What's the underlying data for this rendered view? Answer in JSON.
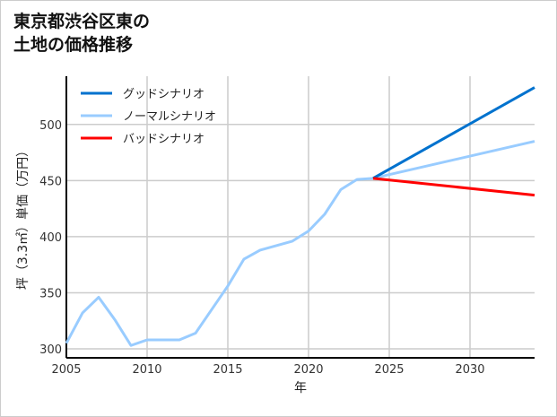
{
  "chart_data": {
    "type": "line",
    "title_lines": [
      "東京都渋谷区東の",
      "土地の価格推移"
    ],
    "xlabel": "年",
    "ylabel": "坪（3.3㎡）単価（万円）",
    "xlim": [
      2005,
      2034
    ],
    "ylim": [
      292,
      543
    ],
    "xticks": [
      2005,
      2010,
      2015,
      2020,
      2025,
      2030
    ],
    "yticks": [
      300,
      350,
      400,
      450,
      500
    ],
    "grid": true,
    "legend_position": "top-left",
    "series": [
      {
        "name": "グッドシナリオ",
        "color": "#0072CE",
        "x": [
          2024,
          2034
        ],
        "y": [
          452,
          533
        ]
      },
      {
        "name": "ノーマルシナリオ",
        "color": "#99CCFF",
        "x": [
          2005,
          2006,
          2007,
          2008,
          2009,
          2010,
          2011,
          2012,
          2013,
          2014,
          2015,
          2016,
          2017,
          2018,
          2019,
          2020,
          2021,
          2022,
          2023,
          2024,
          2034
        ],
        "y": [
          305,
          332,
          346,
          326,
          303,
          308,
          308,
          308,
          314,
          335,
          356,
          380,
          388,
          392,
          396,
          405,
          420,
          442,
          451,
          452,
          485
        ]
      },
      {
        "name": "バッドシナリオ",
        "color": "#FF0000",
        "x": [
          2024,
          2034
        ],
        "y": [
          452,
          437
        ]
      }
    ]
  }
}
